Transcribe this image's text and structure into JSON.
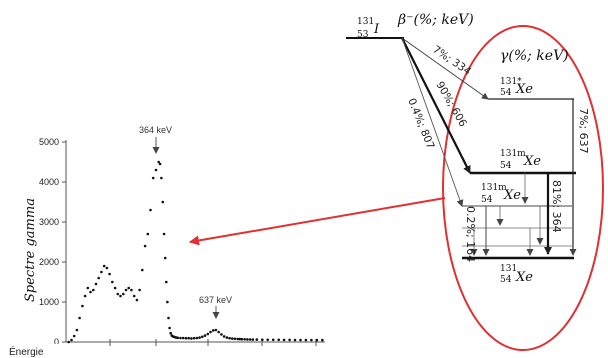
{
  "chart_data": {
    "type": "scatter",
    "ylabel": "Spectre gamma",
    "xlabel": "",
    "ylim": [
      0,
      5000
    ],
    "yticks": [
      "0",
      "1000",
      "2000",
      "3000",
      "4000",
      "5000"
    ],
    "grid": false,
    "annotations": [
      {
        "label": "364 keV",
        "x": 364,
        "y": 4550
      },
      {
        "label": "637 keV",
        "x": 637,
        "y": 320
      }
    ],
    "series": [
      {
        "x": [
          10,
          20,
          30,
          40,
          50,
          60,
          70,
          80,
          90,
          100,
          110,
          120,
          130,
          140,
          150,
          160,
          170,
          180,
          190,
          200,
          210,
          220,
          230,
          240,
          250,
          260,
          270,
          280,
          290,
          300,
          310,
          320,
          330,
          340,
          345,
          350,
          355,
          360,
          364,
          368,
          372,
          376,
          380,
          384,
          388,
          392,
          396,
          400,
          405,
          410,
          420,
          430,
          440,
          450,
          460,
          470,
          480,
          490,
          500,
          510,
          520,
          530,
          540,
          550,
          560,
          570,
          580,
          590,
          600,
          610,
          620,
          630,
          637,
          645,
          655,
          665,
          675,
          685,
          700,
          720,
          740,
          760,
          780,
          800,
          820,
          840,
          860,
          880,
          900,
          920,
          940
        ],
        "y": [
          0,
          50,
          150,
          300,
          600,
          900,
          1150,
          1350,
          1250,
          1300,
          1450,
          1600,
          1750,
          1900,
          1850,
          1700,
          1500,
          1350,
          1200,
          1150,
          1200,
          1300,
          1350,
          1300,
          1150,
          1050,
          1300,
          1800,
          2400,
          2700,
          3300,
          4100,
          4300,
          4500,
          4450,
          4100,
          3500,
          2700,
          2100,
          1500,
          1000,
          600,
          350,
          220,
          160,
          140,
          130,
          120,
          110,
          105,
          100,
          100,
          95,
          95,
          90,
          95,
          100,
          110,
          130,
          160,
          200,
          250,
          290,
          300,
          250,
          190,
          140,
          110,
          95,
          85,
          80,
          75,
          72,
          70,
          68,
          65,
          62,
          60,
          60,
          58,
          56,
          55,
          54,
          53,
          52,
          51,
          50,
          50,
          49,
          48,
          48
        ]
      }
    ]
  },
  "scheme": {
    "parent": {
      "mass": "131",
      "z": "53",
      "symbol": "I"
    },
    "beta_header": "β⁻(%; keV)",
    "gamma_header": "γ(%; keV)",
    "levels": [
      {
        "mass": "131*",
        "z": "54",
        "symbol": "Xe"
      },
      {
        "mass": "131m",
        "z": "54",
        "symbol": "Xe"
      },
      {
        "mass": "131m",
        "z": "54",
        "symbol": "Xe"
      },
      {
        "mass": "131",
        "z": "54",
        "symbol": "Xe"
      }
    ],
    "beta_branches": [
      "7%; 334",
      "90%; 606",
      "0.4%; 807"
    ],
    "gamma_branches": [
      "7%; 637",
      "81%; 364",
      "0.2%; 164"
    ]
  },
  "bottom_label": "Énergie"
}
